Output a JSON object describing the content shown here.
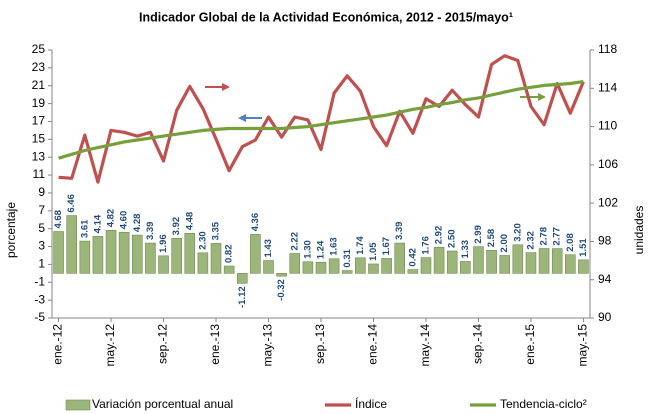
{
  "chart_data": {
    "type": "combo",
    "title": "Indicador Global de la Actividad Económica, 2012 - 2015/mayo¹",
    "ylabel": "porcentaje",
    "y2label": "unidades",
    "categories": [
      "ene.-12",
      null,
      null,
      null,
      "may.-12",
      null,
      null,
      null,
      "sep.-12",
      null,
      null,
      null,
      "ene.-13",
      null,
      null,
      null,
      "may.-13",
      null,
      null,
      null,
      "sep.-13",
      null,
      null,
      null,
      "ene.-14",
      null,
      null,
      null,
      "may.-14",
      null,
      null,
      null,
      "sep.-14",
      null,
      null,
      null,
      "ene.-15",
      null,
      null,
      null,
      "may.-15"
    ],
    "ylim": [
      -5,
      25
    ],
    "yticks": [
      -5,
      -3,
      -1,
      1,
      3,
      5,
      7,
      9,
      11,
      13,
      15,
      17,
      19,
      21,
      23,
      25
    ],
    "y2lim": [
      90,
      118
    ],
    "y2ticks": [
      90,
      94,
      98,
      102,
      106,
      110,
      114,
      118
    ],
    "series": [
      {
        "name": "Variación porcentual anual",
        "type": "bar",
        "color": "#9bb57a",
        "values": [
          4.68,
          6.46,
          3.61,
          4.14,
          4.82,
          4.6,
          4.28,
          3.39,
          1.96,
          3.92,
          4.48,
          2.3,
          3.35,
          0.82,
          -1.12,
          4.36,
          1.43,
          -0.32,
          2.22,
          1.3,
          1.24,
          1.63,
          0.31,
          1.74,
          1.05,
          1.67,
          3.39,
          0.42,
          1.76,
          2.92,
          2.5,
          1.33,
          2.99,
          2.58,
          2.0,
          3.2,
          2.32,
          2.78,
          2.77,
          2.08,
          1.51
        ],
        "value_labels": [
          "4.68",
          "6.46",
          "3.61",
          "4.14",
          "4.82",
          "4.60",
          "4.28",
          "3.39",
          "1.96",
          "3.92",
          "4.48",
          "2.30",
          "3.35",
          "0.82",
          "-1.12",
          "4.36",
          "1.43",
          "-0.32",
          "2.22",
          "1.30",
          "1.24",
          "1.63",
          "0.31",
          "1.74",
          "1.05",
          "1.67",
          "3.39",
          "0.42",
          "1.76",
          "2.92",
          "2.50",
          "1.33",
          "2.99",
          "2.58",
          "2.00",
          "3.20",
          "2.32",
          "2.78",
          "2.77",
          "2.08",
          "1.51"
        ]
      },
      {
        "name": "Índice",
        "type": "line",
        "axis": "y2",
        "color": "#c0504d",
        "values": [
          104.7,
          104.6,
          109.1,
          104.2,
          109.6,
          109.4,
          109.0,
          109.4,
          106.4,
          111.7,
          114.2,
          111.9,
          108.7,
          105.4,
          107.9,
          108.6,
          111.0,
          108.9,
          111.0,
          110.7,
          107.6,
          113.5,
          115.3,
          113.7,
          110.0,
          108.0,
          111.6,
          109.3,
          112.9,
          112.1,
          113.8,
          112.3,
          111.0,
          116.5,
          117.4,
          116.9,
          112.1,
          110.2,
          114.5,
          111.4,
          114.7
        ]
      },
      {
        "name": "Tendencia-ciclo²",
        "type": "line",
        "axis": "y2",
        "color": "#77a03c",
        "values": [
          106.7,
          107.1,
          107.5,
          107.8,
          108.1,
          108.4,
          108.6,
          108.8,
          109.0,
          109.2,
          109.4,
          109.6,
          109.7,
          109.8,
          109.8,
          109.8,
          109.8,
          109.8,
          109.9,
          110.0,
          110.2,
          110.4,
          110.6,
          110.8,
          111.0,
          111.2,
          111.5,
          111.8,
          112.0,
          112.3,
          112.5,
          112.8,
          113.0,
          113.3,
          113.6,
          113.9,
          114.1,
          114.3,
          114.4,
          114.5,
          114.7
        ]
      }
    ]
  }
}
